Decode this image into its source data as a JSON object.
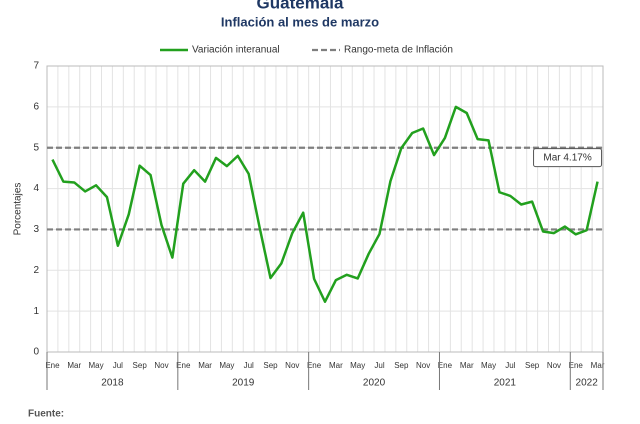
{
  "chart_data": {
    "type": "line",
    "title": "Guatemala",
    "subtitle": "Inflación al mes de marzo",
    "y_label": "Porcentajes",
    "footer": "Fuente:",
    "categories": [
      "Ene",
      null,
      "Mar",
      null,
      "May",
      null,
      "Jul",
      null,
      "Sep",
      null,
      "Nov",
      null,
      "Ene",
      null,
      "Mar",
      null,
      "May",
      null,
      "Jul",
      null,
      "Sep",
      null,
      "Nov",
      null,
      "Ene",
      null,
      "Mar",
      null,
      "May",
      null,
      "Jul",
      null,
      "Sep",
      null,
      "Nov",
      null,
      "Ene",
      null,
      "Mar",
      null,
      "May",
      null,
      "Jul",
      null,
      "Sep",
      null,
      "Nov",
      null,
      "Ene",
      null,
      "Mar"
    ],
    "years": [
      "2018",
      "2019",
      "2020",
      "2021",
      "2022"
    ],
    "series": [
      {
        "name": "Variación interanual",
        "color": "#22a01e",
        "values": [
          4.71,
          4.17,
          4.15,
          3.93,
          4.08,
          3.79,
          2.6,
          3.37,
          4.56,
          4.33,
          3.11,
          2.31,
          4.12,
          4.45,
          4.17,
          4.75,
          4.55,
          4.8,
          4.36,
          3.05,
          1.81,
          2.17,
          2.91,
          3.41,
          1.79,
          1.23,
          1.76,
          1.89,
          1.8,
          2.4,
          2.89,
          4.18,
          4.99,
          5.36,
          5.47,
          4.82,
          5.24,
          6.0,
          5.85,
          5.21,
          5.18,
          3.91,
          3.82,
          3.61,
          3.68,
          2.95,
          2.91,
          3.07,
          2.88,
          2.98,
          4.17
        ],
        "value_labels": [
          null,
          null,
          null,
          null,
          null,
          null,
          null,
          null,
          null,
          null,
          null,
          null,
          null,
          null,
          null,
          null,
          null,
          null,
          null,
          null,
          null,
          null,
          null,
          null,
          null,
          null,
          null,
          null,
          null,
          null,
          null,
          null,
          null,
          null,
          null,
          null,
          null,
          null,
          null,
          null,
          null,
          null,
          null,
          null,
          null,
          null,
          null,
          null,
          null,
          null,
          "Mar 4.17%"
        ]
      }
    ],
    "reference_lines": {
      "name": "Rango-meta de Inflación",
      "color": "#7f7f7f",
      "values": [
        3,
        5
      ]
    },
    "ylim": [
      0,
      7
    ],
    "yticks": [
      0,
      1,
      2,
      3,
      4,
      5,
      6,
      7
    ],
    "grid": true
  }
}
